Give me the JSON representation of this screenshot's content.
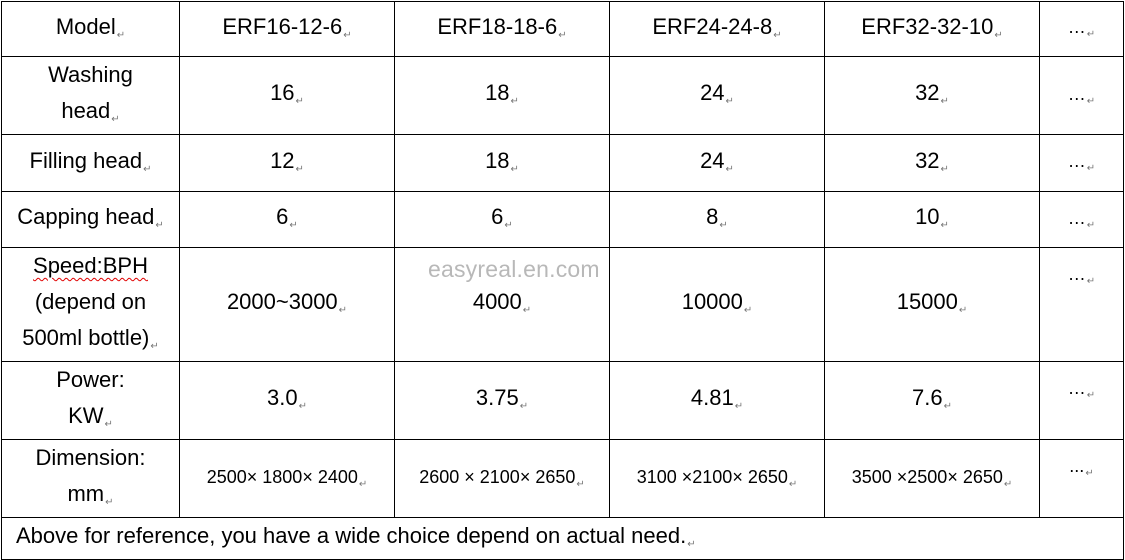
{
  "mark": "↵",
  "watermark": "easyreal.en.com",
  "headers": {
    "model": "Model",
    "c1": "ERF16-12-6",
    "c2": "ERF18-18-6",
    "c3": "ERF24-24-8",
    "c4": "ERF32-32-10",
    "more": "…"
  },
  "rows": {
    "washing": {
      "label_line1": "Washing",
      "label_line2": "head",
      "values": [
        "16",
        "18",
        "24",
        "32"
      ],
      "more": "…"
    },
    "filling": {
      "label": "Filling head",
      "values": [
        "12",
        "18",
        "24",
        "32"
      ],
      "more": "…"
    },
    "capping": {
      "label": "Capping head",
      "values": [
        "6",
        "6",
        "8",
        "10"
      ],
      "more": "…"
    },
    "speed": {
      "label_line1": "Speed:BPH",
      "label_line2": "(depend on",
      "label_line3": "500ml bottle)",
      "values": [
        "2000~3000",
        "4000",
        "10000",
        "15000"
      ],
      "more": "…"
    },
    "power": {
      "label_line1": "Power:",
      "label_line2": "KW",
      "values": [
        "3.0",
        "3.75",
        "4.81",
        "7.6"
      ],
      "more": "…"
    },
    "dimension": {
      "label_line1": "Dimension:",
      "label_line2": "mm",
      "values": [
        "2500× 1800× 2400",
        "2600 × 2100× 2650",
        "3100 ×2100× 2650",
        "3500 ×2500× 2650"
      ],
      "more": "..."
    }
  },
  "note": "Above for reference, you have a wide choice depend on actual need."
}
